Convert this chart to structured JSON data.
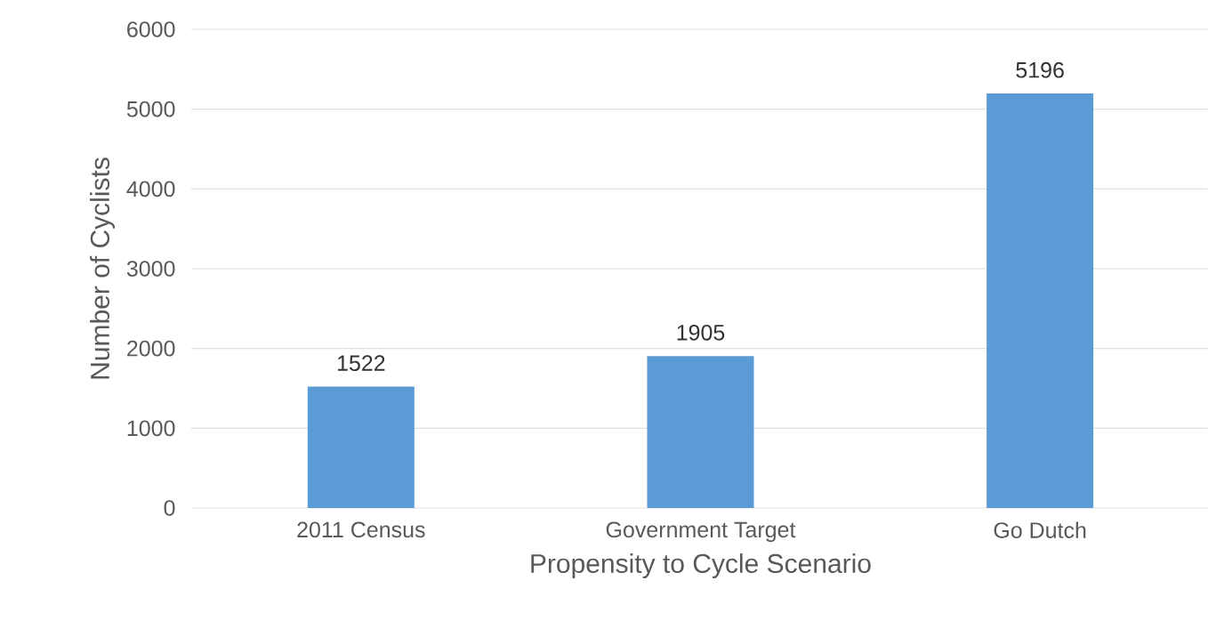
{
  "chart_data": {
    "type": "bar",
    "xlabel": "Propensity to Cycle Scenario",
    "ylabel": "Number of Cyclists",
    "categories": [
      "2011 Census",
      "Government Target",
      "Go Dutch"
    ],
    "values": [
      1522,
      1905,
      5196
    ],
    "color": "#5b9bd5",
    "ylim": [
      0,
      6000
    ],
    "yticks": [
      0,
      1000,
      2000,
      3000,
      4000,
      5000,
      6000
    ],
    "grid": "y",
    "data_labels": true
  }
}
